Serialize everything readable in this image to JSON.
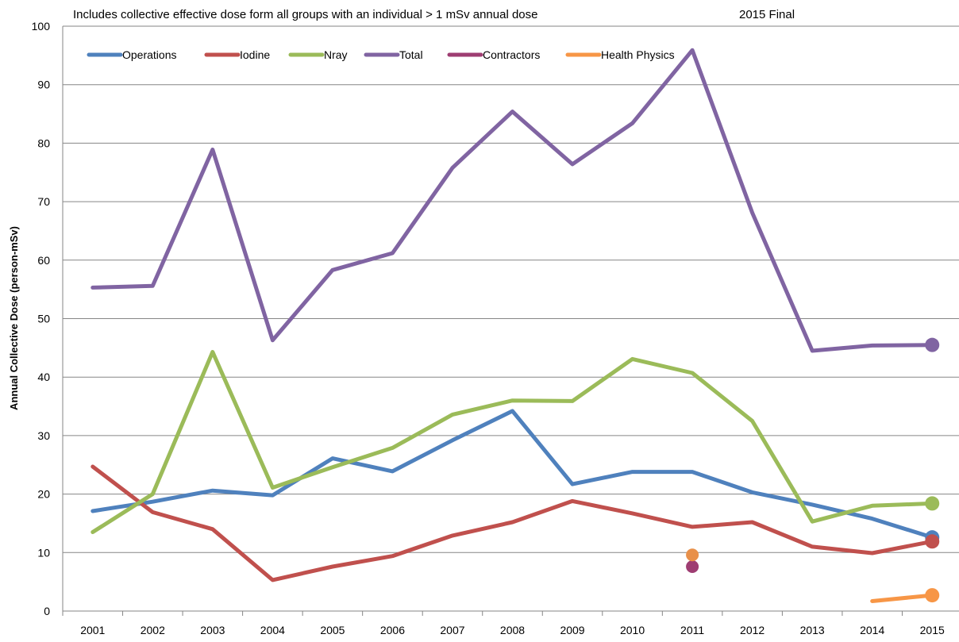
{
  "chart_data": {
    "type": "line",
    "title": "Includes collective effective dose form all groups with an individual > 1 mSv annual dose",
    "subtitle": "2015 Final",
    "xlabel": "",
    "ylabel": "Annual Collective Dose (person-mSv)",
    "ylim": [
      0,
      100
    ],
    "yticks": [
      0,
      10,
      20,
      30,
      40,
      50,
      60,
      70,
      80,
      90,
      100
    ],
    "grid": true,
    "legend_position": "top-left",
    "categories": [
      "2001",
      "2002",
      "2003",
      "2004",
      "2005",
      "2006",
      "2007",
      "2008",
      "2009",
      "2010",
      "2011",
      "2012",
      "2013",
      "2014",
      "2015"
    ],
    "series": [
      {
        "name": "Operations",
        "color": "#4F81BD",
        "values": [
          17.1,
          18.7,
          20.6,
          19.8,
          26.1,
          23.9,
          29.2,
          34.2,
          21.7,
          23.8,
          23.8,
          20.3,
          18.2,
          15.8,
          12.6
        ],
        "endpoint_marker": true
      },
      {
        "name": "Iodine",
        "color": "#C0504D",
        "values": [
          24.7,
          16.9,
          14.0,
          5.3,
          7.6,
          9.4,
          12.9,
          15.2,
          18.8,
          16.7,
          14.4,
          15.2,
          11.0,
          9.9,
          11.9
        ],
        "endpoint_marker": true
      },
      {
        "name": "Nray",
        "color": "#9BBB59",
        "values": [
          13.5,
          20.0,
          44.3,
          21.1,
          24.6,
          27.9,
          33.6,
          36.0,
          35.9,
          43.1,
          40.7,
          32.5,
          15.3,
          18.0,
          18.4
        ],
        "endpoint_marker": true
      },
      {
        "name": "Total",
        "color": "#8064A2",
        "values": [
          55.3,
          55.6,
          78.9,
          46.3,
          58.3,
          61.2,
          75.8,
          85.4,
          76.4,
          83.4,
          95.9,
          68.1,
          44.5,
          45.4,
          45.5
        ],
        "endpoint_marker": true
      },
      {
        "name": "Contractors",
        "color": "#9E3D72",
        "values": [
          null,
          null,
          null,
          null,
          null,
          null,
          null,
          null,
          null,
          null,
          7.6,
          null,
          null,
          null,
          null
        ],
        "endpoint_marker": true
      },
      {
        "name": "Health Physics",
        "color": "#F79646",
        "values": [
          null,
          null,
          null,
          null,
          null,
          null,
          null,
          null,
          null,
          null,
          null,
          null,
          null,
          1.7,
          2.7
        ],
        "endpoint_marker": true
      }
    ],
    "extra_points": [
      {
        "x": "2011",
        "y": 9.6,
        "color": "#E8904A"
      }
    ]
  }
}
